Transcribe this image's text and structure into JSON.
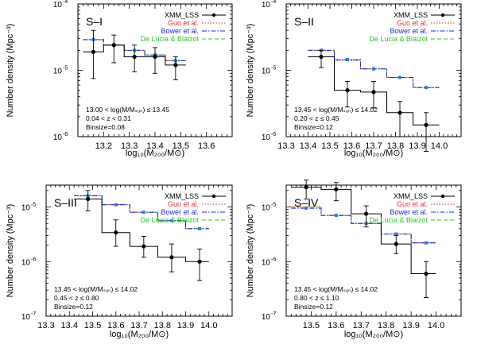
{
  "colors": {
    "xmm": "#000000",
    "guo": "#e03030",
    "bower": "#1a2bd6",
    "delucia": "#2fc42f",
    "bower_marker": "#3a78d8"
  },
  "chart_data": [
    {
      "type": "line",
      "title": "S–I",
      "ylabel": "Number density (Mpc⁻³)",
      "xlabel": "log₁₀(M₂₀₀/M⊙)",
      "xlim": [
        13.1,
        13.7
      ],
      "xticks": [
        13.2,
        13.3,
        13.4,
        13.5,
        13.6
      ],
      "xticklabels": [
        "13.2",
        "13.3",
        "13.4",
        "13.5",
        "13.6"
      ],
      "ylog": true,
      "ylim": [
        -6,
        -4
      ],
      "ytick_exponents": [
        -6,
        -5,
        -4
      ],
      "yticklabels": [
        "10",
        "10",
        "10"
      ],
      "ytick_superscripts": [
        "-6",
        "-5",
        "-4"
      ],
      "legend": [
        "XMM_LSS",
        "Guo et al.",
        "Bower et al.",
        "De Lucia & Blaizot"
      ],
      "annotation": [
        "13.00 < log(M/Mₛᵤₙ) ≤ 13.45",
        "0.04 < z < 0.31",
        "Binsize=0.08"
      ],
      "bin_edges": [
        13.12,
        13.2,
        13.28,
        13.36,
        13.44,
        13.52
      ],
      "x": [
        13.16,
        13.24,
        13.32,
        13.4,
        13.48
      ],
      "series": [
        {
          "name": "XMM_LSS",
          "values": [
            1.9e-05,
            2.4e-05,
            1.6e-05,
            1.6e-05,
            1.2e-05
          ],
          "err_low": [
            7.5e-06,
            1.3e-05,
            9.5e-06,
            9e-06,
            7.2e-06
          ],
          "err_high": [
            4e-05,
            3.4e-05,
            2.4e-05,
            2.2e-05,
            1.6e-05
          ]
        },
        {
          "name": "Guo et al.",
          "values": [
            2.9e-05,
            2.4e-05,
            2e-05,
            1.7e-05,
            1.4e-05
          ]
        },
        {
          "name": "Bower et al.",
          "values": [
            2.9e-05,
            2.4e-05,
            2e-05,
            1.7e-05,
            1.4e-05
          ]
        },
        {
          "name": "De Lucia & Blaizot",
          "values": [
            2.9e-05,
            2.4e-05,
            2e-05,
            1.7e-05,
            1.4e-05
          ]
        }
      ]
    },
    {
      "type": "line",
      "title": "S–II",
      "ylabel": "Number density (Mpc⁻³)",
      "xlabel": "log₁₀(M₂₀₀/M⊙)",
      "xlim": [
        13.3,
        14.1
      ],
      "xticks": [
        13.3,
        13.4,
        13.5,
        13.6,
        13.7,
        13.8,
        13.9,
        14.0
      ],
      "xticklabels": [
        "13.3",
        "13.4",
        "13.5",
        "13.6",
        "13.7",
        "13.8",
        "13.9",
        "14.0"
      ],
      "ylog": true,
      "ylim": [
        -6,
        -4
      ],
      "ytick_exponents": [
        -6,
        -5,
        -4
      ],
      "yticklabels": [
        "10",
        "10",
        "10"
      ],
      "ytick_superscripts": [
        "-6",
        "-5",
        "-4"
      ],
      "legend": [
        "XMM_LSS",
        "Guo et al.",
        "Bower et al.",
        "De Lucia & Blaizot"
      ],
      "annotation": [
        "13.45 < log(M/Mₛᵤₙ) ≤ 14.02",
        "0.20 < z ≤ 0.45",
        "Binsize=0.12"
      ],
      "bin_edges": [
        13.4,
        13.52,
        13.64,
        13.76,
        13.88,
        14.0
      ],
      "x": [
        13.46,
        13.58,
        13.7,
        13.82,
        13.94
      ],
      "series": [
        {
          "name": "XMM_LSS",
          "values": [
            1.6e-05,
            5e-06,
            4.7e-06,
            2.3e-06,
            1.5e-06
          ],
          "err_low": [
            1.1e-05,
            2.8e-06,
            2.7e-06,
            1e-06,
            6e-07
          ],
          "err_high": [
            2e-05,
            6.8e-06,
            6.8e-06,
            3.4e-06,
            2.3e-06
          ]
        },
        {
          "name": "Guo et al.",
          "values": [
            2e-05,
            1.4e-05,
            1.05e-05,
            7.8e-06,
            5.5e-06
          ]
        },
        {
          "name": "Bower et al.",
          "values": [
            2e-05,
            1.45e-05,
            1.05e-05,
            7.8e-06,
            5.5e-06
          ]
        },
        {
          "name": "De Lucia & Blaizot",
          "values": [
            2e-05,
            1.45e-05,
            1.05e-05,
            7.8e-06,
            5.5e-06
          ]
        }
      ]
    },
    {
      "type": "line",
      "title": "S–III",
      "ylabel": "Number density (Mpc⁻³)",
      "xlabel": "log₁₀(M₂₀₀/M⊙)",
      "xlim": [
        13.3,
        14.1
      ],
      "xticks": [
        13.3,
        13.4,
        13.5,
        13.6,
        13.7,
        13.8,
        13.9,
        14.0
      ],
      "xticklabels": [
        "13.3",
        "13.4",
        "13.5",
        "13.6",
        "13.7",
        "13.8",
        "13.9",
        "14.0"
      ],
      "ylog": true,
      "ylim": [
        -7,
        -4.6
      ],
      "ytick_exponents": [
        -7,
        -6,
        -5
      ],
      "yticklabels": [
        "10",
        "10",
        "10"
      ],
      "ytick_superscripts": [
        "-7",
        "-6",
        "-5"
      ],
      "legend": [
        "XMM_LSS",
        "Guo et al.",
        "Bower et al.",
        "De Lucia & Blaizot"
      ],
      "annotation": [
        "13.45 < log(M/Mₛᵤₙ) ≤ 14.02",
        "0.45 < z ≤ 0.80",
        "Binsize=0.12"
      ],
      "bin_edges": [
        13.42,
        13.54,
        13.66,
        13.78,
        13.9,
        14.0
      ],
      "x": [
        13.48,
        13.6,
        13.72,
        13.84,
        13.96
      ],
      "series": [
        {
          "name": "XMM_LSS",
          "values": [
            1.4e-05,
            3.4e-06,
            1.9e-06,
            1.2e-06,
            1e-06
          ],
          "err_low": [
            8.5e-06,
            1.9e-06,
            1.2e-06,
            6.5e-07,
            4.5e-07
          ],
          "err_high": [
            2e-05,
            5.8e-06,
            2.9e-06,
            2.1e-06,
            1.7e-06
          ]
        },
        {
          "name": "Guo et al.",
          "values": [
            1.6e-05,
            1.1e-05,
            8e-06,
            5.6e-06,
            4e-06
          ]
        },
        {
          "name": "Bower et al.",
          "values": [
            1.6e-05,
            1.1e-05,
            8e-06,
            5.6e-06,
            4e-06
          ]
        },
        {
          "name": "De Lucia & Blaizot",
          "values": [
            1.6e-05,
            1.1e-05,
            8e-06,
            5.6e-06,
            4e-06
          ]
        }
      ]
    },
    {
      "type": "line",
      "title": "S–IV",
      "ylabel": "Number density (Mpc⁻³)",
      "xlabel": "log₁₀(M₂₀₀/M⊙)",
      "xlim": [
        13.4,
        14.1
      ],
      "xticks": [
        13.5,
        13.6,
        13.7,
        13.8,
        13.9,
        14.0
      ],
      "xticklabels": [
        "13.5",
        "13.6",
        "13.7",
        "13.8",
        "13.9",
        "14.0"
      ],
      "ylog": true,
      "ylim": [
        -7,
        -4.6
      ],
      "ytick_exponents": [
        -7,
        -6,
        -5
      ],
      "yticklabels": [
        "10",
        "10",
        "10"
      ],
      "ytick_superscripts": [
        "-7",
        "-6",
        "-5"
      ],
      "legend": [
        "XMM_LSS",
        "Guo et al.",
        "Bower et al.",
        "De Lucia & Blaizot"
      ],
      "annotation": [
        "13.45 < log(M/Mₛᵤₙ) ≤ 14.02",
        "0.80 < z ≤ 1.10",
        "Binsize=0.12"
      ],
      "bin_edges": [
        13.42,
        13.54,
        13.66,
        13.78,
        13.9,
        14.0
      ],
      "x": [
        13.48,
        13.6,
        13.72,
        13.84,
        13.96
      ],
      "series": [
        {
          "name": "XMM_LSS",
          "values": [
            2.3e-05,
            2.1e-05,
            7.5e-06,
            2.1e-06,
            6e-07
          ],
          "err_low": [
            1.4e-05,
            1.3e-05,
            4.3e-06,
            1.4e-06,
            2.2e-07
          ],
          "err_high": [
            3.1e-05,
            2.8e-05,
            1.05e-05,
            3e-06,
            1e-06
          ]
        },
        {
          "name": "Guo et al.",
          "values": [
            1e-05,
            7e-06,
            5e-06,
            3.2e-06,
            2.2e-06
          ]
        },
        {
          "name": "Bower et al.",
          "values": [
            9.5e-06,
            7e-06,
            5e-06,
            3.2e-06,
            2.2e-06
          ]
        },
        {
          "name": "De Lucia & Blaizot",
          "values": [
            1e-05,
            7e-06,
            5e-06,
            3.2e-06,
            2.2e-06
          ]
        }
      ]
    }
  ]
}
